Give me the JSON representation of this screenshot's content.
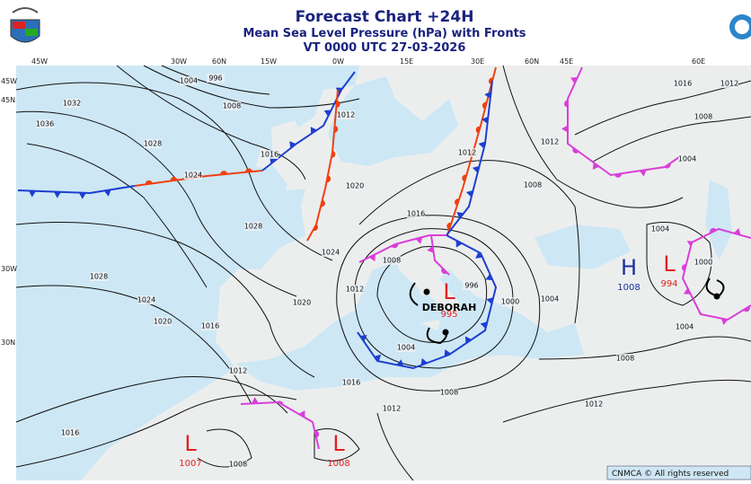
{
  "header": {
    "title": "Forecast Chart +24H",
    "subtitle": "Mean Sea Level Pressure (hPa) with Fronts",
    "valid_time": "VT 0000 UTC 27-03-2026"
  },
  "coordinate_labels": {
    "top": [
      "45W",
      "30W",
      "60N",
      "15W",
      "0W",
      "15E",
      "30E",
      "60N",
      "45E",
      "60E"
    ],
    "left": [
      "45W",
      "45N",
      "30W",
      "30N"
    ]
  },
  "pressure_centers": [
    {
      "letter": "L",
      "value": 995,
      "name": "DEBORAH",
      "color": "#e02020"
    },
    {
      "letter": "H",
      "value": 1008,
      "color": "#1a2fa0"
    },
    {
      "letter": "L",
      "value": 994,
      "color": "#e02020"
    },
    {
      "letter": "L",
      "value": 1007,
      "color": "#e02020"
    },
    {
      "letter": "L",
      "value": 1008,
      "color": "#e02020"
    }
  ],
  "isobar_labels": [
    1032,
    1036,
    1028,
    1024,
    1028,
    1028,
    1024,
    1020,
    1016,
    1012,
    1016,
    1008,
    1012,
    1016,
    1004,
    1008,
    1008,
    1012,
    1004,
    1000,
    1004,
    1004,
    1000,
    996,
    1008,
    1012,
    1020,
    1024,
    1020,
    1012,
    1016,
    1008,
    1012,
    1004,
    1008,
    1012,
    1016,
    996,
    1004,
    1008,
    1016,
    1012
  ],
  "footer": {
    "copyright": "CNMCA © All rights reserved"
  }
}
